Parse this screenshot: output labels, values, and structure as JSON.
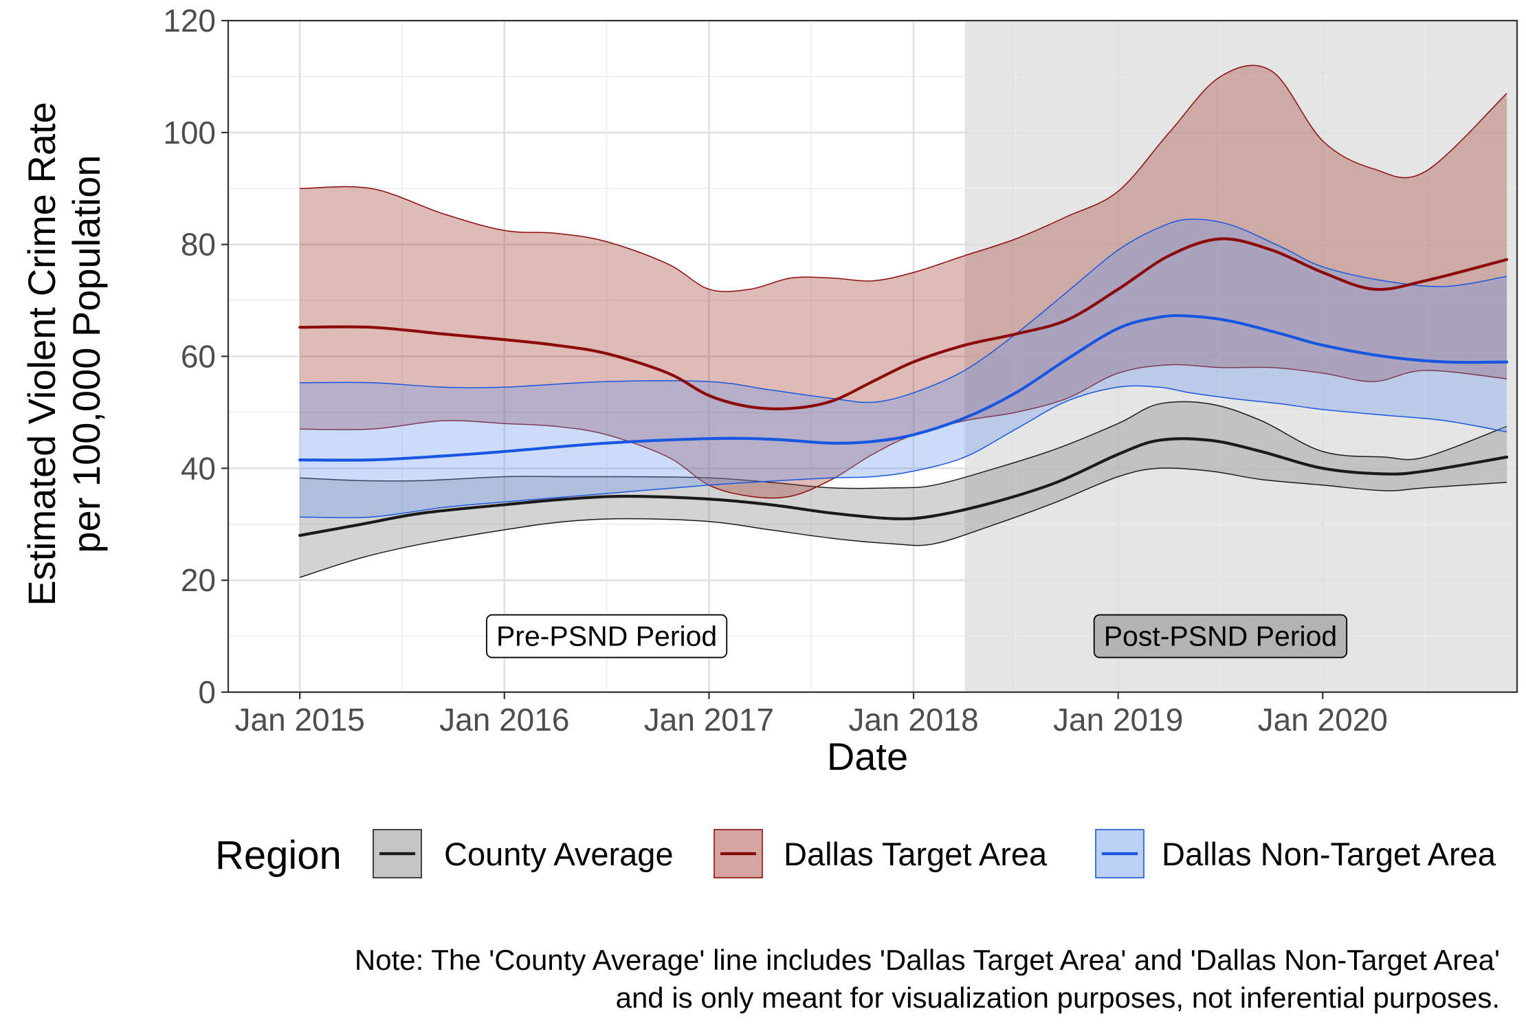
{
  "chart_data": {
    "type": "line",
    "xlabel": "Date",
    "ylabel_lines": [
      "Estimated Violent Crime Rate",
      "per 100,000 Population"
    ],
    "ylim": [
      0,
      120
    ],
    "y_ticks": [
      0,
      20,
      40,
      60,
      80,
      100,
      120
    ],
    "xlim": [
      2014.65,
      2020.95
    ],
    "x_ticks": [
      {
        "label": "Jan 2015",
        "value": 2015
      },
      {
        "label": "Jan 2016",
        "value": 2016
      },
      {
        "label": "Jan 2017",
        "value": 2017
      },
      {
        "label": "Jan 2018",
        "value": 2018
      },
      {
        "label": "Jan 2019",
        "value": 2019
      },
      {
        "label": "Jan 2020",
        "value": 2020
      }
    ],
    "grid": true,
    "post_period_start": 2018.25,
    "annotations": [
      {
        "label": "Pre-PSND Period",
        "x": 2016.5,
        "y": 10,
        "fill": "#ffffff"
      },
      {
        "label": "Post-PSND Period",
        "x": 2019.5,
        "y": 10,
        "fill": "#b3b3b3"
      }
    ],
    "legend": {
      "title": "Region",
      "position": "bottom",
      "entries": [
        "County Average",
        "Dallas Target Area",
        "Dallas Non-Target Area"
      ]
    },
    "series": [
      {
        "name": "County Average",
        "line_color": "#1a1a1a",
        "fill_color": "#7f7f7f",
        "x": [
          2015.0,
          2015.3,
          2015.6,
          2016.0,
          2016.3,
          2016.6,
          2017.0,
          2017.3,
          2017.6,
          2017.9,
          2018.1,
          2018.4,
          2018.7,
          2019.0,
          2019.2,
          2019.45,
          2019.7,
          2020.0,
          2020.3,
          2020.5,
          2020.9
        ],
        "value": [
          28,
          30,
          32,
          33.5,
          34.5,
          35,
          34.5,
          33.5,
          32,
          31,
          31.5,
          34,
          37.5,
          42.5,
          45,
          45,
          43,
          40,
          39,
          39.5,
          42
        ],
        "lower": [
          20.5,
          24,
          26.5,
          29,
          30.5,
          31,
          30.5,
          29,
          27.5,
          26.5,
          26.5,
          30,
          34,
          38.5,
          40,
          39.5,
          38,
          37,
          36,
          36.5,
          37.5
        ],
        "upper": [
          38.3,
          37.8,
          37.8,
          38.5,
          38.5,
          38.5,
          38.3,
          37.5,
          36.5,
          36.5,
          37,
          40,
          43.5,
          48,
          51.5,
          51.5,
          48.5,
          43,
          42,
          42,
          47.5
        ]
      },
      {
        "name": "Dallas Target Area",
        "line_color": "#8b0a0a",
        "fill_color": "#a0382f",
        "x": [
          2015.0,
          2015.35,
          2015.7,
          2016.0,
          2016.25,
          2016.5,
          2016.8,
          2017.0,
          2017.2,
          2017.4,
          2017.6,
          2017.8,
          2018.0,
          2018.25,
          2018.5,
          2018.75,
          2019.0,
          2019.25,
          2019.5,
          2019.75,
          2020.0,
          2020.25,
          2020.5,
          2020.9
        ],
        "value": [
          65.2,
          65.2,
          64,
          63,
          62,
          60.5,
          57,
          53,
          51,
          50.7,
          52,
          55.5,
          59,
          62,
          64,
          66.5,
          72,
          78,
          81,
          79,
          75,
          72,
          73.5,
          77.3
        ],
        "lower": [
          47,
          47,
          48.5,
          48,
          47.5,
          46,
          42,
          37,
          35,
          35,
          38,
          42.5,
          46,
          48.5,
          50,
          52.5,
          57,
          58.5,
          58,
          58,
          57,
          55.5,
          57.5,
          56
        ],
        "upper": [
          90,
          90,
          85.5,
          82.5,
          82,
          80.5,
          76.5,
          72,
          72,
          74,
          74,
          73.5,
          75,
          78,
          81,
          85,
          89.5,
          100,
          110,
          111,
          98.5,
          93.5,
          93,
          107
        ]
      },
      {
        "name": "Dallas Non-Target Area",
        "line_color": "#1756e0",
        "fill_color": "#6a95e8",
        "x": [
          2015.0,
          2015.35,
          2015.7,
          2016.0,
          2016.5,
          2017.0,
          2017.3,
          2017.6,
          2017.8,
          2018.0,
          2018.25,
          2018.5,
          2018.75,
          2019.0,
          2019.2,
          2019.35,
          2019.55,
          2019.8,
          2020.0,
          2020.3,
          2020.6,
          2020.9
        ],
        "value": [
          41.5,
          41.5,
          42.2,
          43,
          44.5,
          45.3,
          45.2,
          44.5,
          44.8,
          46,
          49,
          53.5,
          59.5,
          65,
          67,
          67.2,
          66.3,
          64,
          62,
          60,
          59,
          59
        ],
        "lower": [
          31.3,
          31.3,
          33,
          34,
          35.5,
          37,
          37.7,
          38.3,
          38.5,
          39.5,
          42,
          47,
          52,
          54.5,
          54.5,
          53.5,
          52.5,
          51.5,
          50.5,
          49.5,
          48.5,
          46.5
        ],
        "upper": [
          55.3,
          55.3,
          54.5,
          54.5,
          55.5,
          55.5,
          54,
          52.5,
          51.8,
          53.5,
          57.5,
          64,
          71.5,
          79,
          83,
          84.5,
          83.5,
          79.5,
          76,
          73.5,
          72.5,
          74.3
        ]
      }
    ]
  },
  "note_lines": [
    "Note: The 'County Average' line includes 'Dallas Target Area' and 'Dallas Non-Target Area'",
    "and is only meant for visualization purposes, not inferential purposes."
  ]
}
